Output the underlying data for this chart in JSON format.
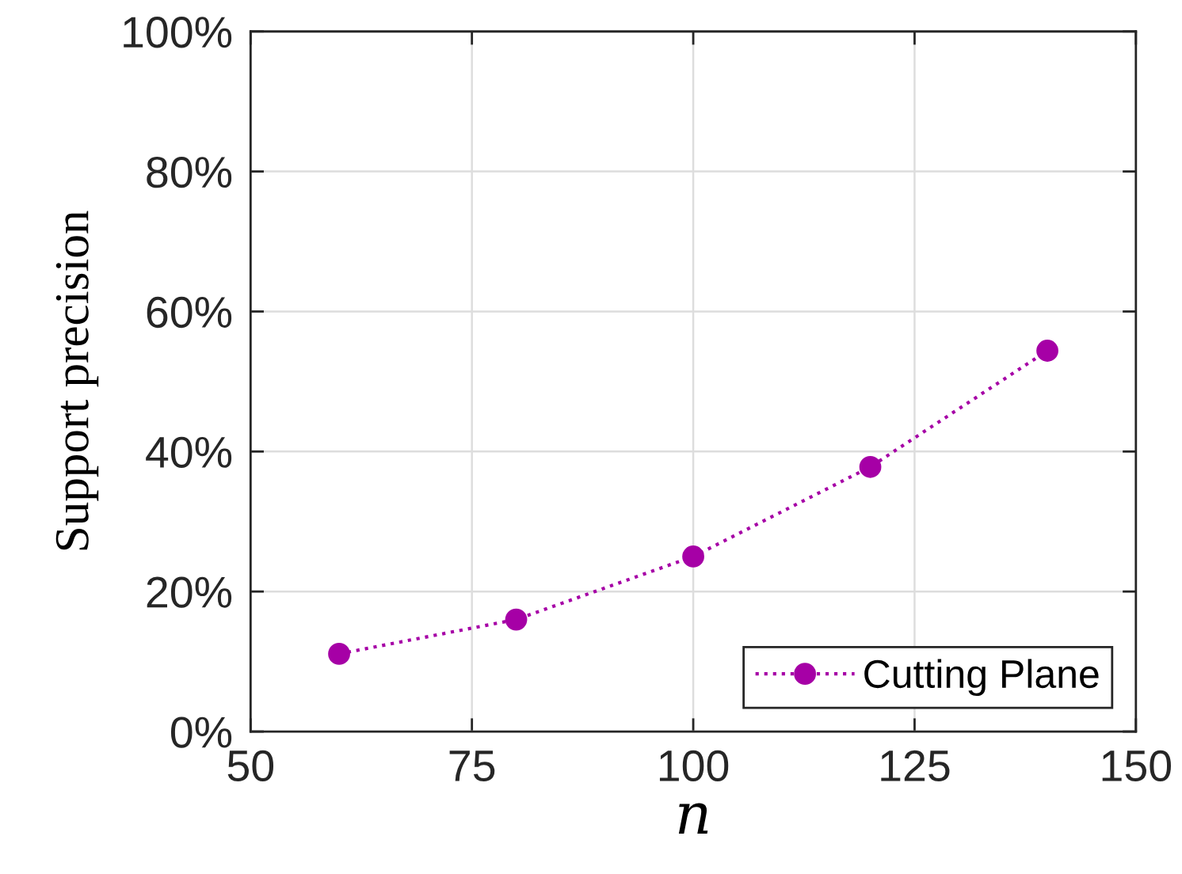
{
  "chart_data": {
    "type": "line",
    "xlabel": "n",
    "ylabel": "Support precision",
    "x": [
      60,
      80,
      100,
      120,
      140
    ],
    "series": [
      {
        "name": "Cutting Plane",
        "color": "#a600a6",
        "values": [
          11.1,
          16.0,
          25.0,
          37.8,
          54.4
        ]
      }
    ],
    "xlim": [
      50,
      150
    ],
    "xticks": [
      50,
      75,
      100,
      125,
      150
    ],
    "ylim": [
      0,
      100
    ],
    "yticks": [
      {
        "value": 0,
        "label": "0%"
      },
      {
        "value": 20,
        "label": "20%"
      },
      {
        "value": 40,
        "label": "40%"
      },
      {
        "value": 60,
        "label": "60%"
      },
      {
        "value": 80,
        "label": "80%"
      },
      {
        "value": 100,
        "label": "100%"
      }
    ],
    "grid": true,
    "legend": "bottom right",
    "marker": "circle",
    "line_style": "dotted"
  }
}
